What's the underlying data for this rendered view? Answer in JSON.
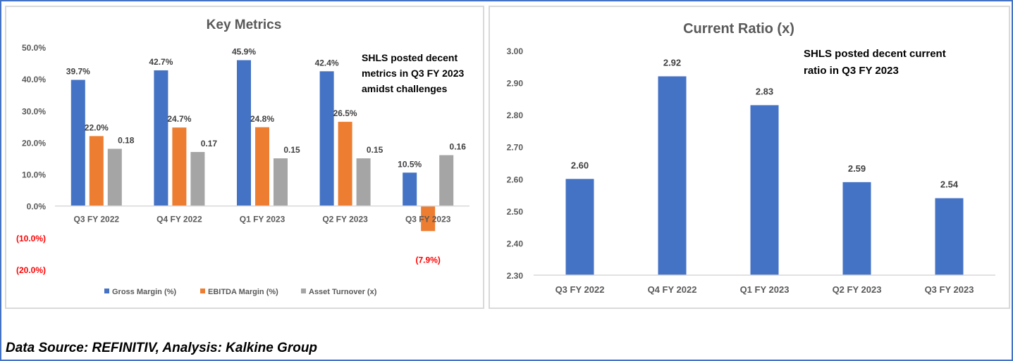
{
  "chart_data": [
    {
      "type": "bar",
      "title": "Key Metrics",
      "annotation": [
        "SHLS posted decent",
        "metrics in Q3 FY 2023",
        "amidst challenges"
      ],
      "categories": [
        "Q3 FY 2022",
        "Q4 FY 2022",
        "Q1 FY 2023",
        "Q2 FY 2023",
        "Q3 FY 2023"
      ],
      "ylim": [
        -20,
        50
      ],
      "yticks": [
        50,
        40,
        30,
        20,
        10,
        0,
        -10,
        -20
      ],
      "ytick_labels": [
        "50.0%",
        "40.0%",
        "30.0%",
        "20.0%",
        "10.0%",
        "0.0%",
        "(10.0%)",
        "(20.0%)"
      ],
      "legend_position": "bottom",
      "series": [
        {
          "name": "Gross Margin (%)",
          "color": "#4472c4",
          "values": [
            39.7,
            42.7,
            45.9,
            42.4,
            10.5
          ],
          "labels": [
            "39.7%",
            "42.7%",
            "45.9%",
            "42.4%",
            "10.5%"
          ]
        },
        {
          "name": "EBITDA Margin (%)",
          "color": "#ed7d31",
          "values": [
            22.0,
            24.7,
            24.8,
            26.5,
            -7.9
          ],
          "labels": [
            "22.0%",
            "24.7%",
            "24.8%",
            "26.5%",
            "(7.9%)"
          ]
        },
        {
          "name": "Asset Turnover (x)",
          "color": "#a5a5a5",
          "values": [
            0.18,
            0.17,
            0.15,
            0.15,
            0.16
          ],
          "plot_scale": 100,
          "labels": [
            "0.18",
            "0.17",
            "0.15",
            "0.15",
            "0.16"
          ]
        }
      ],
      "negative_color": "#ff0000"
    },
    {
      "type": "bar",
      "title": "Current Ratio (x)",
      "annotation": [
        "SHLS posted decent current",
        "ratio in Q3 FY 2023"
      ],
      "categories": [
        "Q3 FY 2022",
        "Q4 FY 2022",
        "Q1 FY 2023",
        "Q2 FY 2023",
        "Q3 FY 2023"
      ],
      "ylim": [
        2.3,
        3.0
      ],
      "yticks": [
        3.0,
        2.9,
        2.8,
        2.7,
        2.6,
        2.5,
        2.4,
        2.3
      ],
      "ytick_labels": [
        "3.00",
        "2.90",
        "2.80",
        "2.70",
        "2.60",
        "2.50",
        "2.40",
        "2.30"
      ],
      "series": [
        {
          "name": "Current Ratio (x)",
          "color": "#4472c4",
          "values": [
            2.6,
            2.92,
            2.83,
            2.59,
            2.54
          ],
          "labels": [
            "2.60",
            "2.92",
            "2.83",
            "2.59",
            "2.54"
          ]
        }
      ]
    }
  ],
  "footer": "Data Source: REFINITIV, Analysis: Kalkine Group"
}
